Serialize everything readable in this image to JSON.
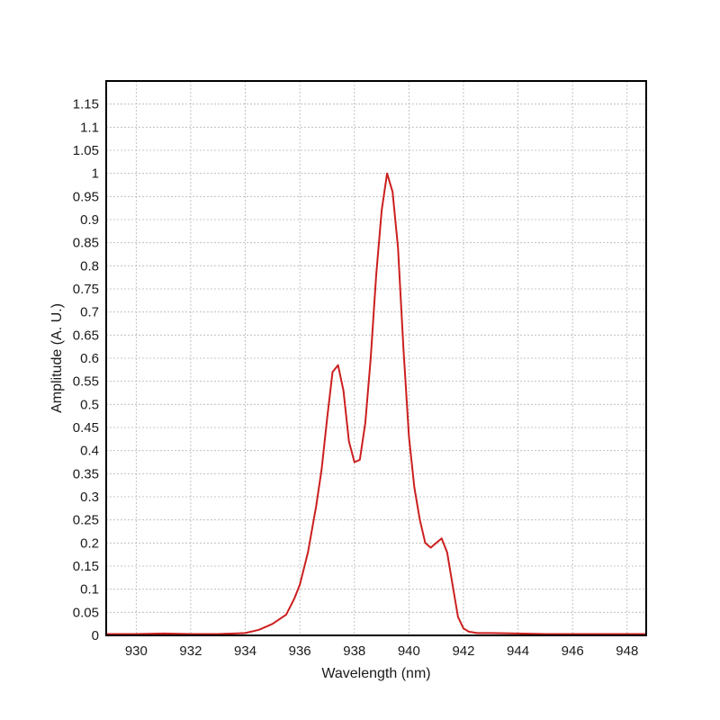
{
  "chart_data": {
    "type": "line",
    "title": "",
    "xlabel": "Wavelength (nm)",
    "ylabel": "Amplitude (A. U.)",
    "xlim": [
      928.9,
      948.7
    ],
    "ylim": [
      0,
      1.2
    ],
    "x_ticks": [
      930,
      932,
      934,
      936,
      938,
      940,
      942,
      944,
      946,
      948
    ],
    "y_ticks": [
      0,
      0.05,
      0.1,
      0.15,
      0.2,
      0.25,
      0.3,
      0.35,
      0.4,
      0.45,
      0.5,
      0.55,
      0.6,
      0.65,
      0.7,
      0.75,
      0.8,
      0.85,
      0.9,
      0.95,
      1,
      1.05,
      1.1,
      1.15
    ],
    "grid": true,
    "series_color": "#cc1f1f",
    "series": [
      {
        "x": [
          928.9,
          930,
          931,
          932,
          933,
          934,
          934.5,
          935,
          935.5,
          935.8,
          936,
          936.3,
          936.6,
          936.8,
          937,
          937.2,
          937.4,
          937.6,
          937.8,
          938,
          938.2,
          938.4,
          938.6,
          938.8,
          939,
          939.2,
          939.4,
          939.6,
          939.8,
          940,
          940.2,
          940.4,
          940.6,
          940.8,
          941,
          941.2,
          941.4,
          941.6,
          941.8,
          942,
          942.2,
          942.5,
          943,
          944,
          945,
          946,
          947,
          948,
          948.7
        ],
        "y": [
          0.003,
          0.003,
          0.004,
          0.003,
          0.003,
          0.005,
          0.012,
          0.025,
          0.045,
          0.08,
          0.11,
          0.18,
          0.28,
          0.36,
          0.47,
          0.57,
          0.585,
          0.53,
          0.42,
          0.375,
          0.38,
          0.46,
          0.6,
          0.78,
          0.92,
          1.0,
          0.96,
          0.84,
          0.62,
          0.43,
          0.32,
          0.25,
          0.2,
          0.19,
          0.2,
          0.21,
          0.18,
          0.11,
          0.04,
          0.015,
          0.008,
          0.005,
          0.005,
          0.004,
          0.003,
          0.003,
          0.003,
          0.003,
          0.003
        ]
      }
    ]
  }
}
